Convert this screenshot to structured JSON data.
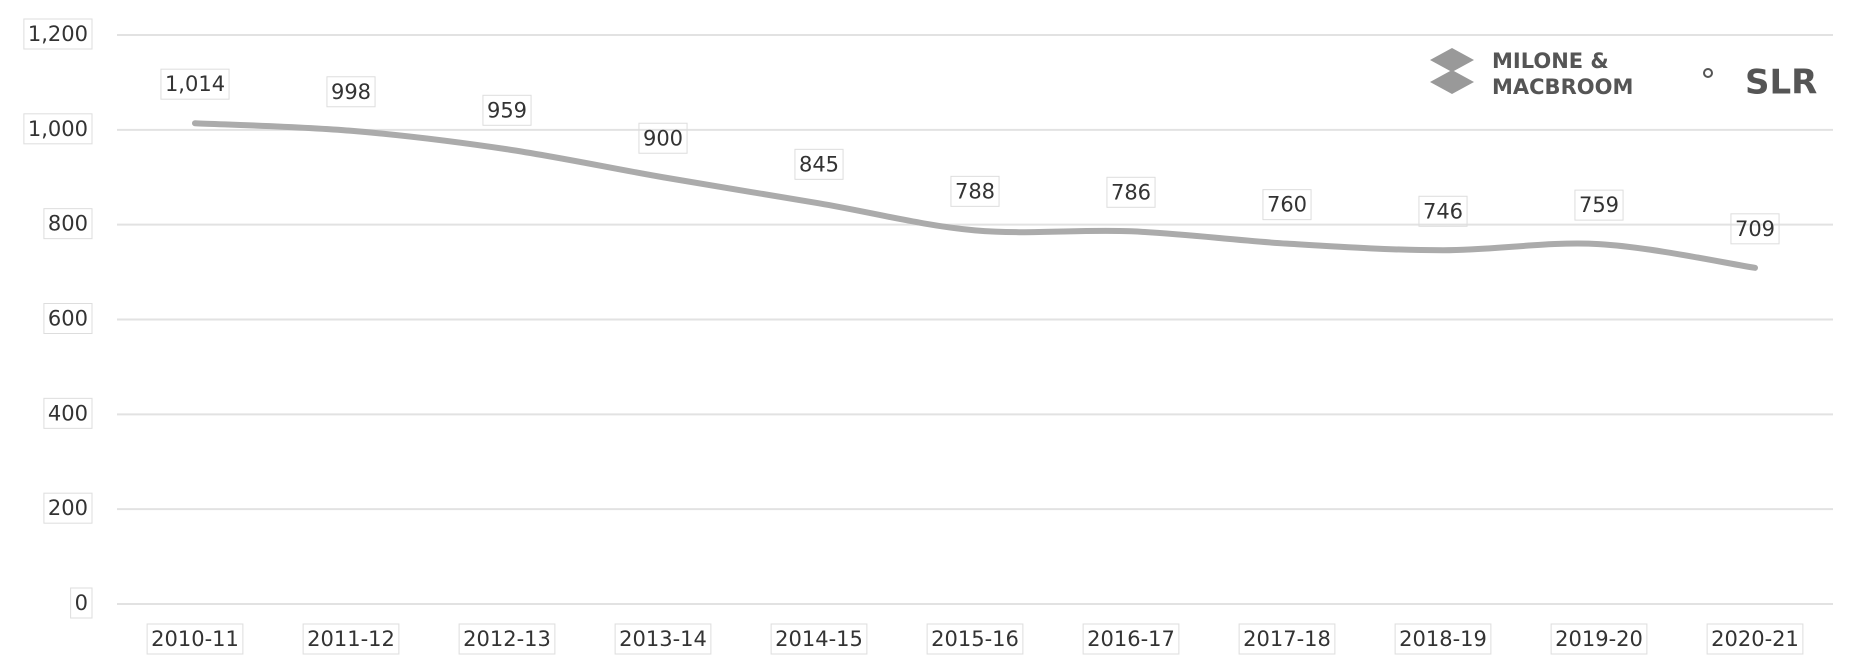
{
  "chart_data": {
    "type": "line",
    "categories": [
      "2010-11",
      "2011-12",
      "2012-13",
      "2013-14",
      "2014-15",
      "2015-16",
      "2016-17",
      "2017-18",
      "2018-19",
      "2019-20",
      "2020-21"
    ],
    "values": [
      1014,
      998,
      959,
      900,
      845,
      788,
      786,
      760,
      746,
      759,
      709
    ],
    "value_labels": [
      "1,014",
      "998",
      "959",
      "900",
      "845",
      "788",
      "786",
      "760",
      "746",
      "759",
      "709"
    ],
    "color": "#ababab",
    "ylim": [
      0,
      1200
    ],
    "yticks": [
      0,
      200,
      400,
      600,
      800,
      {
        "value": 1000,
        "label": "1,000"
      },
      {
        "value": 1200,
        "label": "1,200"
      }
    ],
    "grid": true
  },
  "logo": {
    "line1": "MILONE &",
    "line2": "MACBROOM",
    "partner": "SLR"
  }
}
